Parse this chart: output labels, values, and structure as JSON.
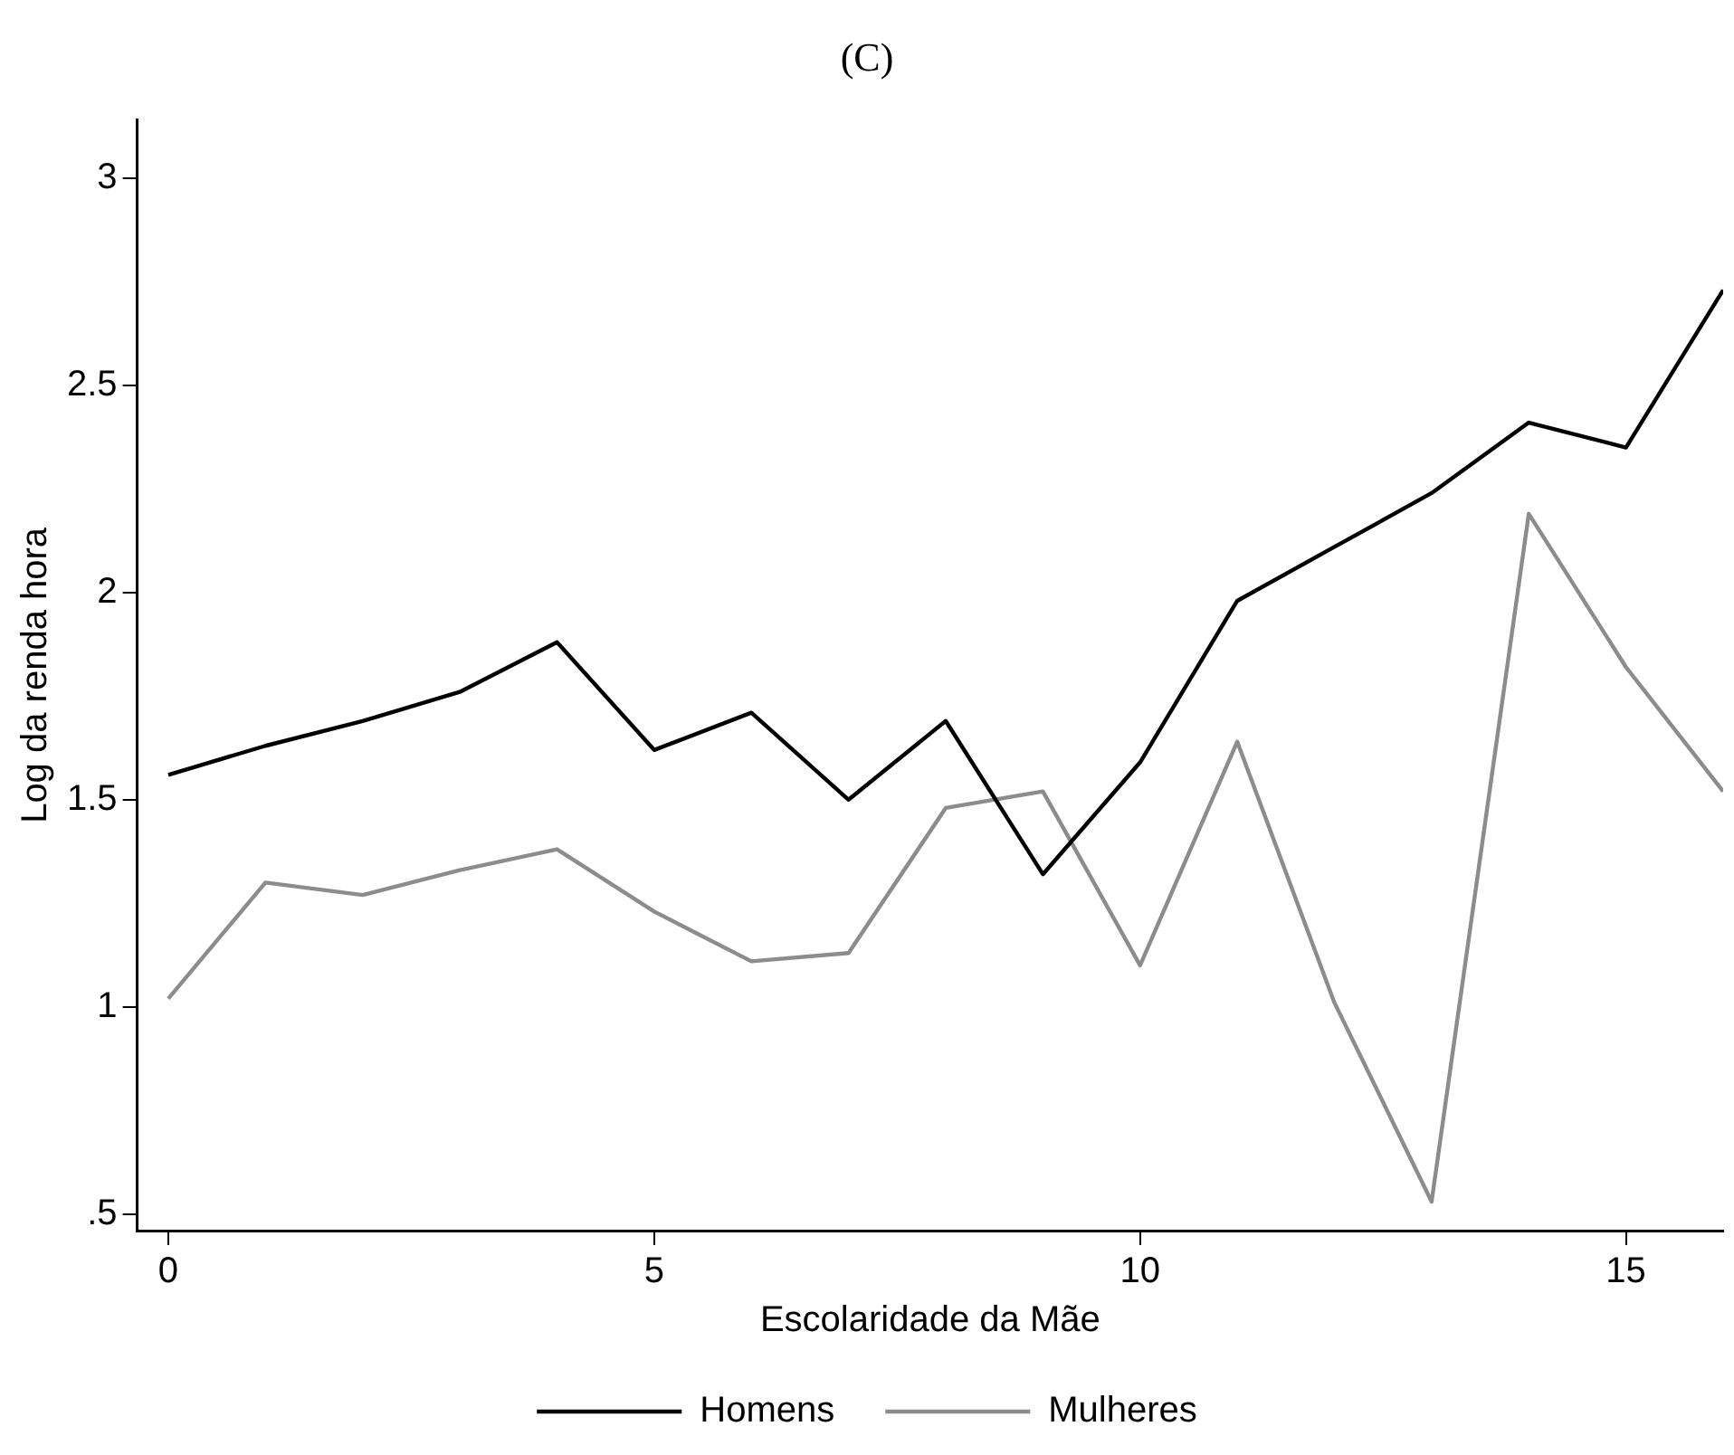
{
  "chart_data": {
    "type": "line",
    "title": "(C)",
    "xlabel": "Escolaridade da Mãe",
    "ylabel": "Log da renda hora",
    "x": [
      0,
      1,
      2,
      3,
      4,
      5,
      6,
      7,
      8,
      9,
      10,
      11,
      12,
      13,
      14,
      15,
      16
    ],
    "series": [
      {
        "name": "Homens",
        "color": "#000000",
        "values": [
          1.56,
          1.63,
          1.69,
          1.76,
          1.88,
          1.62,
          1.71,
          1.5,
          1.69,
          1.32,
          1.59,
          1.98,
          2.11,
          2.24,
          2.41,
          2.35,
          2.73
        ]
      },
      {
        "name": "Mulheres",
        "color": "#8c8c8c",
        "values": [
          1.02,
          1.3,
          1.27,
          1.33,
          1.38,
          1.23,
          1.11,
          1.13,
          1.48,
          1.52,
          1.1,
          1.64,
          1.01,
          0.53,
          2.19,
          1.82,
          1.52
        ]
      }
    ],
    "xlim": [
      -0.32,
      16
    ],
    "xticks": [
      0,
      5,
      10,
      15
    ],
    "ylim": [
      0.46,
      3.14
    ],
    "yticks": [
      {
        "value": 0.5,
        "label": ".5"
      },
      1,
      1.5,
      2,
      2.5,
      3
    ],
    "grid": false,
    "legend": "bottom",
    "marker": "none",
    "line_style": "solid"
  }
}
